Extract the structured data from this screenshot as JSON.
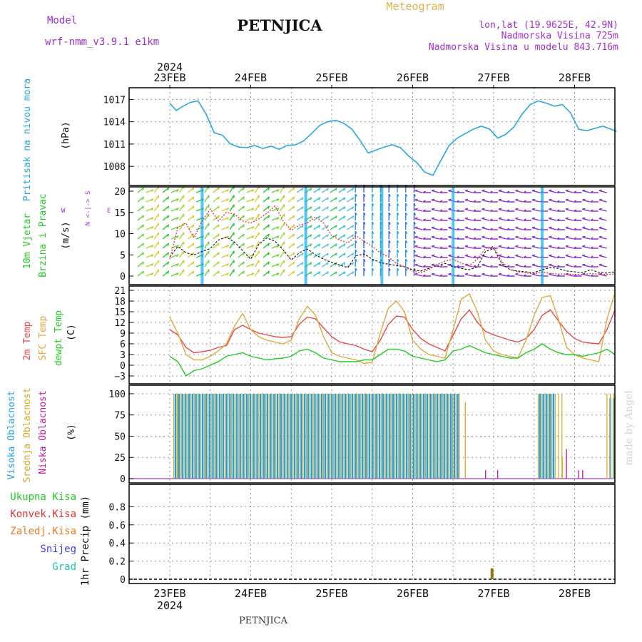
{
  "header": {
    "model_label": "Model",
    "model_value": "wrf-nmm_v3.9.1  e1km",
    "station": "PETNJICA",
    "title": "Meteogram",
    "lonlat": "lon,lat (19.9625E, 42.9N)",
    "elevation": "Nadmorska Visina 725m",
    "model_elevation": "Nadmorska Visina u modelu 843.716m"
  },
  "footer": {
    "station": "PETNJICA",
    "credit": "made by Angel"
  },
  "top_axis": {
    "year": "2024",
    "dates": [
      "23FEB",
      "24FEB",
      "25FEB",
      "26FEB",
      "27FEB",
      "28FEB"
    ]
  },
  "bottom_axis": {
    "year": "2024",
    "dates": [
      "23FEB",
      "24FEB",
      "25FEB",
      "26FEB",
      "27FEB",
      "28FEB"
    ]
  },
  "labels": {
    "pressure": {
      "name": "Pritisak na nivou mora",
      "unit": "(hPa)"
    },
    "wind": {
      "name1": "10m Vjetar",
      "name2": "Brzina i Pravac",
      "unit": "(m/s)",
      "compass": [
        "N",
        "E",
        "S",
        "W"
      ],
      "compass_text": "N <-|-> S"
    },
    "temp": {
      "name1": "2m Temp",
      "name2": "SFC Temp",
      "name3": "dewpt Temp",
      "unit": "(C)"
    },
    "cloud": {
      "name1": "Visoka Oblacnost",
      "name2": "Srednja Oblacnost",
      "name3": "Niska Oblacnost",
      "unit": "(%)"
    },
    "precip": {
      "legend": [
        "Ukupna Kisa",
        "Konvek.Kisa",
        "Zaledj.Kisa",
        "Snijeg",
        "Grad"
      ],
      "unit": "1hr Precip (mm)"
    }
  },
  "colors": {
    "pressure": "#29a8e0",
    "temp2m": "#e84848",
    "sfc": "#e0a840",
    "dew": "#22cc22",
    "high": "#1ea0e8",
    "mid": "#d8a820",
    "low": "#c0189c",
    "precip_total": "#8a7a10",
    "purple_text": "#a030d0",
    "gold_text": "#e0b050",
    "green_text": "#22cc22",
    "red_text": "#e83030",
    "orange_text": "#f07820",
    "blue_text": "#4040e0",
    "teal_text": "#20c0b0"
  },
  "chart_data": [
    {
      "type": "line",
      "name": "pressure",
      "ylim": [
        1006,
        1018
      ],
      "yticks": [
        1008,
        1011,
        1014,
        1017
      ],
      "x_days": [
        0,
        0.5,
        1,
        1.5,
        2,
        2.5,
        3,
        3.5,
        4,
        4.5,
        5,
        5.5
      ],
      "x": [
        0.0,
        0.08,
        0.15,
        0.25,
        0.35,
        0.45,
        0.55,
        0.65,
        0.75,
        0.85,
        0.95,
        1.05,
        1.15,
        1.25,
        1.35,
        1.45,
        1.55,
        1.65,
        1.75,
        1.85,
        1.95,
        2.05,
        2.15,
        2.25,
        2.35,
        2.45,
        2.55,
        2.65,
        2.75,
        2.85,
        2.95,
        3.05,
        3.15,
        3.25,
        3.35,
        3.45,
        3.55,
        3.65,
        3.75,
        3.85,
        3.95,
        4.05,
        4.15,
        4.25,
        4.35,
        4.45,
        4.55,
        4.65,
        4.75,
        4.85,
        4.95,
        5.05,
        5.15,
        5.25,
        5.35,
        5.45,
        5.52
      ],
      "values": [
        1016.5,
        1015.5,
        1016.0,
        1016.6,
        1016.8,
        1015.0,
        1012.5,
        1012.2,
        1011.0,
        1010.6,
        1010.5,
        1010.8,
        1010.4,
        1010.7,
        1010.3,
        1010.8,
        1010.9,
        1011.4,
        1012.4,
        1013.5,
        1014.0,
        1014.2,
        1013.8,
        1013.0,
        1011.5,
        1009.8,
        1010.2,
        1010.6,
        1010.9,
        1010.5,
        1009.4,
        1008.5,
        1007.2,
        1006.8,
        1008.8,
        1010.8,
        1011.8,
        1012.4,
        1013.0,
        1013.4,
        1013.0,
        1011.8,
        1012.3,
        1013.3,
        1015.0,
        1016.3,
        1016.8,
        1016.5,
        1016.1,
        1016.3,
        1015.2,
        1013.0,
        1012.8,
        1013.1,
        1013.4,
        1013.0,
        1012.7
      ]
    },
    {
      "type": "line",
      "name": "wind_speed",
      "ylim": [
        -1,
        20
      ],
      "yticks": [
        0,
        5,
        10,
        15,
        20
      ],
      "x_days": [
        0,
        0.5,
        1,
        1.5,
        2,
        2.5,
        3,
        3.5,
        4,
        4.5,
        5,
        5.5
      ],
      "series": [
        {
          "name": "mean",
          "style": "dashed-black",
          "x": [
            0.0,
            0.1,
            0.2,
            0.3,
            0.4,
            0.5,
            0.6,
            0.7,
            0.8,
            0.9,
            1.0,
            1.1,
            1.2,
            1.3,
            1.4,
            1.5,
            1.6,
            1.7,
            1.8,
            1.9,
            2.0,
            2.1,
            2.2,
            2.3,
            2.4,
            2.5,
            2.6,
            2.7,
            2.8,
            2.9,
            3.0,
            3.1,
            3.2,
            3.3,
            3.4,
            3.5,
            3.6,
            3.7,
            3.8,
            3.9,
            4.0,
            4.1,
            4.2,
            4.3,
            4.4,
            4.5,
            4.6,
            4.7,
            4.8,
            4.9,
            5.0,
            5.1,
            5.2,
            5.3,
            5.4,
            5.5
          ],
          "values": [
            4.5,
            7.0,
            5.5,
            5.0,
            5.8,
            6.5,
            8.5,
            9.2,
            8.0,
            6.0,
            4.0,
            7.5,
            9.0,
            8.2,
            6.2,
            3.8,
            5.5,
            6.4,
            5.0,
            4.0,
            3.2,
            2.6,
            2.0,
            4.8,
            5.2,
            4.0,
            3.2,
            2.8,
            2.5,
            2.2,
            1.5,
            1.2,
            1.8,
            2.5,
            3.0,
            2.2,
            1.8,
            1.5,
            2.2,
            5.8,
            6.5,
            3.0,
            1.5,
            1.2,
            1.0,
            0.8,
            1.5,
            2.0,
            1.8,
            1.2,
            1.0,
            0.8,
            1.5,
            0.9,
            0.7,
            1.0
          ]
        },
        {
          "name": "gust",
          "style": "dotted-red",
          "x": [
            0.0,
            0.1,
            0.2,
            0.3,
            0.4,
            0.5,
            0.6,
            0.7,
            0.8,
            0.9,
            1.0,
            1.1,
            1.2,
            1.3,
            1.4,
            1.5,
            1.6,
            1.7,
            1.8,
            1.9,
            2.0,
            2.1,
            2.2,
            2.3,
            2.4,
            2.5,
            2.6,
            2.7,
            2.8,
            2.9,
            3.0,
            3.1,
            3.2,
            3.3,
            3.4,
            3.5,
            3.6,
            3.7,
            3.8,
            3.9,
            4.0,
            4.1,
            4.2,
            4.3,
            4.4,
            4.5,
            4.6,
            4.7,
            4.8,
            4.9,
            5.0,
            5.1,
            5.2,
            5.3,
            5.4,
            5.5
          ],
          "values": [
            4.0,
            11.5,
            12.5,
            9.0,
            13.0,
            15.8,
            13.0,
            15.0,
            14.6,
            13.0,
            12.5,
            13.5,
            14.8,
            16.5,
            13.0,
            10.8,
            12.0,
            12.5,
            14.0,
            12.5,
            9.5,
            8.5,
            7.8,
            9.5,
            8.2,
            7.0,
            5.5,
            4.5,
            3.0,
            2.2,
            1.2,
            0.8,
            1.5,
            2.8,
            3.5,
            4.0,
            3.0,
            2.5,
            4.0,
            6.5,
            7.0,
            3.5,
            1.5,
            1.0,
            0.8,
            0.5,
            1.0,
            0.6,
            0.5,
            0.5,
            0.4,
            0.4,
            0.6,
            0.5,
            0.4,
            0.5
          ]
        }
      ]
    },
    {
      "type": "line",
      "name": "temperature",
      "ylim": [
        -4,
        21
      ],
      "yticks": [
        -3,
        0,
        3,
        6,
        9,
        12,
        15,
        18,
        21
      ],
      "x_days": [
        0,
        0.5,
        1,
        1.5,
        2,
        2.5,
        3,
        3.5,
        4,
        4.5,
        5,
        5.5
      ],
      "series": [
        {
          "name": "2m Temp",
          "color": "#e84848",
          "x": [
            0.0,
            0.1,
            0.2,
            0.3,
            0.4,
            0.5,
            0.6,
            0.7,
            0.8,
            0.9,
            1.0,
            1.1,
            1.2,
            1.3,
            1.4,
            1.5,
            1.6,
            1.7,
            1.8,
            1.9,
            2.0,
            2.1,
            2.2,
            2.3,
            2.4,
            2.5,
            2.6,
            2.7,
            2.8,
            2.9,
            3.0,
            3.1,
            3.2,
            3.3,
            3.4,
            3.5,
            3.6,
            3.7,
            3.8,
            3.9,
            4.0,
            4.1,
            4.2,
            4.3,
            4.4,
            4.5,
            4.6,
            4.7,
            4.8,
            4.9,
            5.0,
            5.1,
            5.2,
            5.3,
            5.4,
            5.5
          ],
          "values": [
            10.0,
            8.5,
            5.0,
            3.5,
            3.8,
            4.2,
            5.0,
            5.5,
            10.0,
            11.2,
            10.0,
            9.0,
            8.5,
            8.0,
            7.8,
            8.0,
            11.5,
            13.5,
            13.0,
            10.5,
            8.0,
            6.5,
            6.0,
            5.5,
            4.5,
            3.8,
            7.0,
            11.5,
            13.8,
            13.5,
            10.0,
            7.5,
            6.0,
            5.0,
            4.0,
            8.5,
            13.0,
            15.5,
            12.0,
            9.5,
            8.5,
            7.8,
            7.0,
            6.5,
            7.5,
            10.0,
            14.0,
            15.5,
            12.5,
            9.5,
            7.5,
            6.5,
            6.2,
            6.0,
            10.0,
            15.5
          ]
        },
        {
          "name": "SFC Temp",
          "color": "#e0a840",
          "x": [
            0.0,
            0.1,
            0.2,
            0.3,
            0.4,
            0.5,
            0.6,
            0.7,
            0.8,
            0.9,
            1.0,
            1.1,
            1.2,
            1.3,
            1.4,
            1.5,
            1.6,
            1.7,
            1.8,
            1.9,
            2.0,
            2.1,
            2.2,
            2.3,
            2.4,
            2.5,
            2.6,
            2.7,
            2.8,
            2.9,
            3.0,
            3.1,
            3.2,
            3.3,
            3.4,
            3.5,
            3.6,
            3.7,
            3.8,
            3.9,
            4.0,
            4.1,
            4.2,
            4.3,
            4.4,
            4.5,
            4.6,
            4.7,
            4.8,
            4.9,
            5.0,
            5.1,
            5.2,
            5.3,
            5.4,
            5.5
          ],
          "values": [
            13.5,
            9.0,
            3.0,
            1.5,
            1.5,
            2.5,
            4.0,
            6.0,
            11.0,
            14.5,
            10.0,
            8.0,
            7.0,
            6.5,
            6.0,
            7.0,
            13.0,
            16.5,
            14.0,
            8.0,
            3.5,
            2.5,
            2.0,
            1.5,
            0.5,
            0.8,
            9.0,
            16.0,
            18.0,
            15.0,
            7.0,
            4.5,
            3.0,
            2.5,
            2.0,
            10.0,
            18.5,
            20.0,
            15.0,
            7.0,
            4.0,
            3.0,
            2.5,
            2.0,
            7.0,
            14.0,
            19.0,
            19.5,
            13.0,
            5.0,
            3.0,
            2.0,
            1.5,
            1.0,
            13.0,
            20.5
          ]
        },
        {
          "name": "dewpt Temp",
          "color": "#22cc22",
          "x": [
            0.0,
            0.1,
            0.2,
            0.3,
            0.4,
            0.5,
            0.6,
            0.7,
            0.8,
            0.9,
            1.0,
            1.1,
            1.2,
            1.3,
            1.4,
            1.5,
            1.6,
            1.7,
            1.8,
            1.9,
            2.0,
            2.1,
            2.2,
            2.3,
            2.4,
            2.5,
            2.6,
            2.7,
            2.8,
            2.9,
            3.0,
            3.1,
            3.2,
            3.3,
            3.4,
            3.5,
            3.6,
            3.7,
            3.8,
            3.9,
            4.0,
            4.1,
            4.2,
            4.3,
            4.4,
            4.5,
            4.6,
            4.7,
            4.8,
            4.9,
            5.0,
            5.1,
            5.2,
            5.3,
            5.4,
            5.5
          ],
          "values": [
            2.5,
            1.0,
            -3.0,
            -1.5,
            -1.0,
            0.0,
            1.0,
            2.5,
            3.0,
            3.5,
            2.5,
            2.0,
            1.5,
            1.8,
            2.0,
            2.5,
            4.0,
            4.5,
            3.5,
            2.0,
            1.5,
            1.0,
            1.0,
            1.0,
            1.5,
            1.5,
            3.0,
            4.5,
            4.5,
            4.0,
            2.5,
            2.0,
            1.5,
            1.0,
            1.5,
            4.0,
            4.5,
            5.5,
            4.5,
            3.5,
            3.0,
            2.5,
            2.0,
            2.0,
            3.5,
            4.5,
            6.0,
            4.5,
            3.5,
            3.0,
            3.0,
            2.5,
            3.0,
            3.5,
            4.5,
            3.0
          ]
        }
      ]
    },
    {
      "type": "bar",
      "name": "cloud_cover",
      "ylim": [
        0,
        105
      ],
      "yticks": [
        0,
        25,
        50,
        75,
        100
      ],
      "x_days": [
        0,
        0.5,
        1,
        1.5,
        2,
        2.5,
        3,
        3.5,
        4,
        4.5,
        5,
        5.5
      ],
      "blocks": [
        {
          "layer": "high",
          "x_from": 0.05,
          "x_to": 3.55,
          "value": 100
        },
        {
          "layer": "mid",
          "x_from": 0.05,
          "x_to": 3.6,
          "value": 100
        },
        {
          "layer": "high",
          "x_from": 4.55,
          "x_to": 4.75,
          "value": 100
        },
        {
          "layer": "mid",
          "x_from": 4.55,
          "x_to": 4.85,
          "value": 100
        },
        {
          "layer": "high",
          "x_from": 5.42,
          "x_to": 5.52,
          "value": 95
        },
        {
          "layer": "mid",
          "x_from": 5.4,
          "x_to": 5.52,
          "value": 100
        }
      ],
      "scattered": [
        {
          "layer": "mid",
          "x": 0.1,
          "value": 100
        },
        {
          "layer": "low",
          "x": 3.9,
          "value": 10
        },
        {
          "layer": "low",
          "x": 4.05,
          "value": 10
        },
        {
          "layer": "low",
          "x": 4.9,
          "value": 35
        },
        {
          "layer": "low",
          "x": 5.05,
          "value": 10
        },
        {
          "layer": "low",
          "x": 5.1,
          "value": 10
        },
        {
          "layer": "mid",
          "x": 3.65,
          "value": 90
        },
        {
          "layer": "mid",
          "x": 4.85,
          "value": 25
        }
      ]
    },
    {
      "type": "bar",
      "name": "precipitation",
      "ylim": [
        0,
        1.0
      ],
      "yticks": [
        0,
        0.2,
        0.4,
        0.6,
        0.8
      ],
      "x_days": [
        0,
        0.5,
        1,
        1.5,
        2,
        2.5,
        3,
        3.5,
        4,
        4.5,
        5,
        5.5
      ],
      "bars": [
        {
          "x": 3.98,
          "value": 0.12
        }
      ]
    }
  ]
}
